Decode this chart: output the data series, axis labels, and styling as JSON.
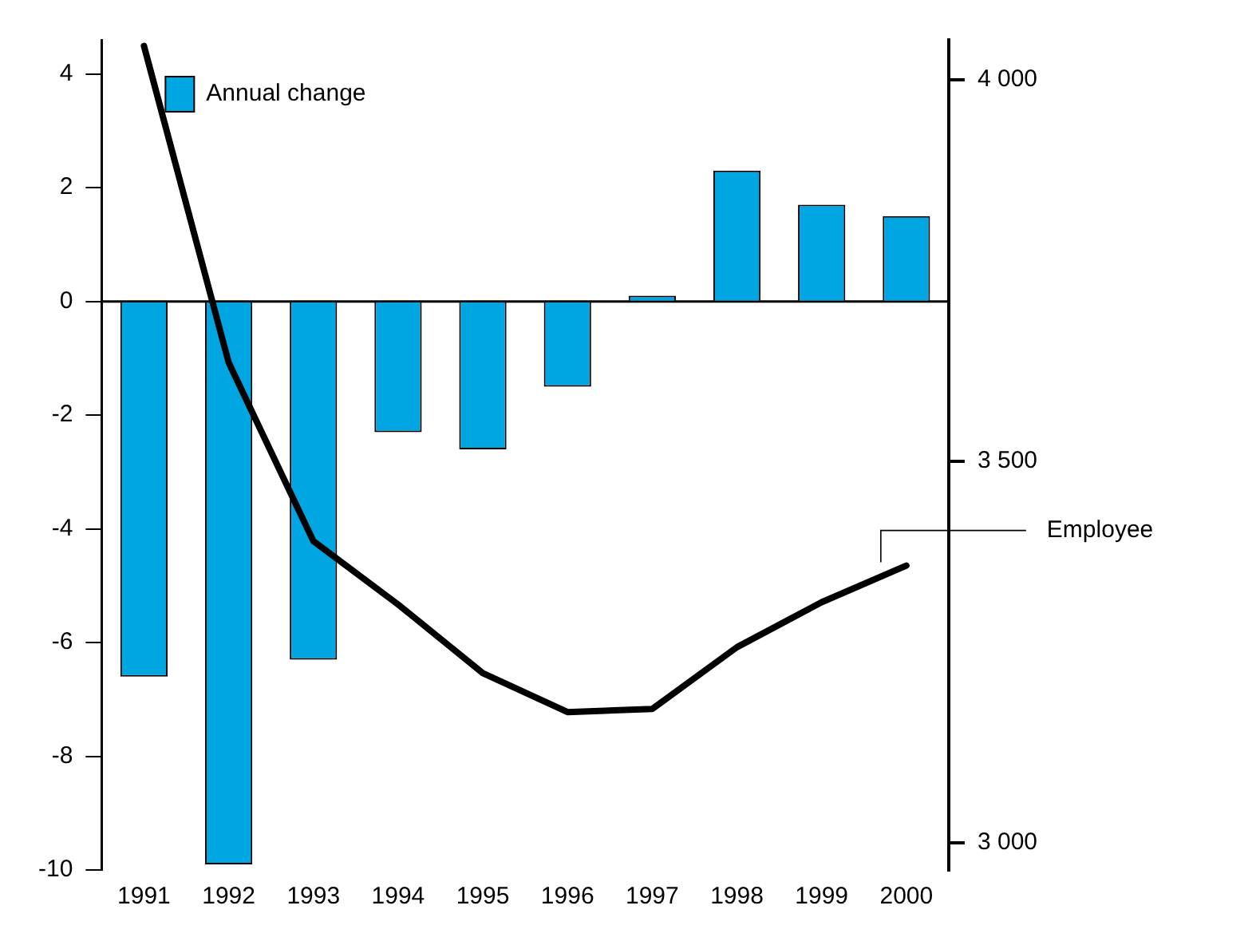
{
  "chart_data": {
    "type": "bar",
    "categories": [
      "1991",
      "1992",
      "1993",
      "1994",
      "1995",
      "1996",
      "1997",
      "1998",
      "1999",
      "2000"
    ],
    "series": [
      {
        "name": "Annual change",
        "color": "#00a6e2",
        "values": [
          -6.6,
          -9.9,
          -6.3,
          -2.3,
          -2.6,
          -1.5,
          0.1,
          2.3,
          1.7,
          1.5
        ]
      },
      {
        "name": "Employee",
        "type": "line",
        "axis": "y2",
        "color": "#000000",
        "values": [
          4044,
          3629,
          3395,
          3312,
          3222,
          3171,
          3175,
          3256,
          3315,
          3363
        ]
      }
    ],
    "ylim": [
      -10,
      4.6
    ],
    "yticks": [
      -10,
      -8,
      -6,
      -4,
      -2,
      0,
      2,
      4
    ],
    "y2lim": [
      2964,
      4052
    ],
    "y2ticks": [
      {
        "value": 3000,
        "label": "3 000"
      },
      {
        "value": 3500,
        "label": "3 500"
      },
      {
        "value": 4000,
        "label": "4 000"
      }
    ],
    "ref_lines": [
      {
        "axis": "y",
        "value": 0,
        "color": "#000000"
      }
    ],
    "legend": "top left",
    "grid": false,
    "marker": "none",
    "line_style": "solid"
  }
}
